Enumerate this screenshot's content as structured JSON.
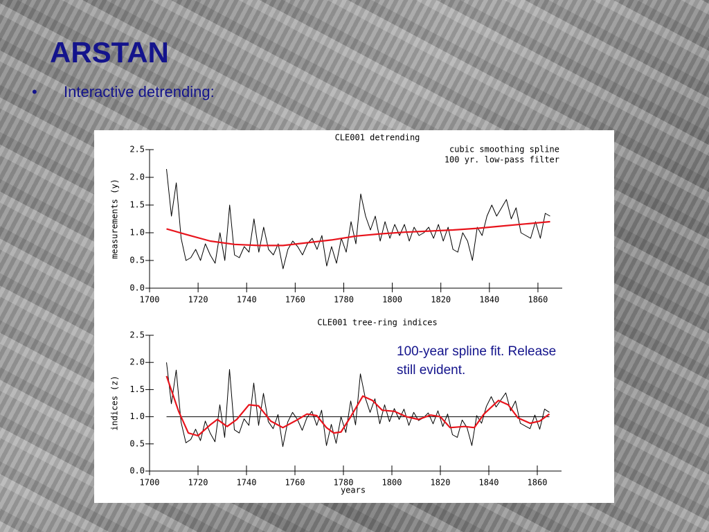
{
  "slide": {
    "title": "ARSTAN",
    "bullet": "•",
    "text": "Interactive detrending:",
    "note": [
      "100-year spline fit. Release",
      "still evident."
    ]
  },
  "chart_data": [
    {
      "type": "line",
      "title": "CLE001 detrending",
      "annotations": [
        "cubic smoothing spline",
        "100 yr. low-pass filter"
      ],
      "ylabel": "measurements (y)",
      "xlim": [
        1700,
        1870
      ],
      "xticks": [
        1700,
        1720,
        1740,
        1760,
        1780,
        1800,
        1820,
        1840,
        1860
      ],
      "ylim": [
        0,
        2.5
      ],
      "yticks": [
        {
          "value": 0,
          "label": "0.0"
        },
        0.5,
        {
          "value": 1,
          "label": "1.0"
        },
        1.5,
        {
          "value": 2,
          "label": "2.0"
        },
        2.5
      ],
      "series": [
        {
          "color": "#000000",
          "x": [
            1707,
            1709,
            1711,
            1713,
            1715,
            1717,
            1719,
            1721,
            1723,
            1725,
            1727,
            1729,
            1731,
            1733,
            1735,
            1737,
            1739,
            1741,
            1743,
            1745,
            1747,
            1749,
            1751,
            1753,
            1755,
            1757,
            1759,
            1761,
            1763,
            1765,
            1767,
            1769,
            1771,
            1773,
            1775,
            1777,
            1779,
            1781,
            1783,
            1785,
            1787,
            1789,
            1791,
            1793,
            1795,
            1797,
            1799,
            1801,
            1803,
            1805,
            1807,
            1809,
            1811,
            1813,
            1815,
            1817,
            1819,
            1821,
            1823,
            1825,
            1827,
            1829,
            1831,
            1833,
            1835,
            1837,
            1839,
            1841,
            1843,
            1845,
            1847,
            1849,
            1851,
            1853,
            1855,
            1857,
            1859,
            1861,
            1863,
            1865
          ],
          "values": [
            2.15,
            1.3,
            1.9,
            0.9,
            0.5,
            0.55,
            0.7,
            0.5,
            0.8,
            0.6,
            0.45,
            1.0,
            0.5,
            1.5,
            0.6,
            0.55,
            0.75,
            0.65,
            1.25,
            0.65,
            1.1,
            0.7,
            0.6,
            0.8,
            0.35,
            0.7,
            0.85,
            0.75,
            0.6,
            0.8,
            0.9,
            0.7,
            0.95,
            0.4,
            0.75,
            0.45,
            0.9,
            0.65,
            1.2,
            0.8,
            1.7,
            1.3,
            1.05,
            1.3,
            0.85,
            1.2,
            0.9,
            1.15,
            0.95,
            1.15,
            0.85,
            1.1,
            0.95,
            1.0,
            1.1,
            0.9,
            1.15,
            0.85,
            1.1,
            0.7,
            0.65,
            1.0,
            0.85,
            0.5,
            1.1,
            0.95,
            1.3,
            1.5,
            1.3,
            1.45,
            1.6,
            1.25,
            1.45,
            1.0,
            0.95,
            0.9,
            1.2,
            0.9,
            1.35,
            1.3
          ]
        },
        {
          "color": "#e8141c",
          "x": [
            1707,
            1715,
            1725,
            1735,
            1745,
            1755,
            1765,
            1775,
            1785,
            1795,
            1805,
            1815,
            1825,
            1835,
            1845,
            1855,
            1865
          ],
          "values": [
            1.07,
            0.97,
            0.85,
            0.79,
            0.77,
            0.77,
            0.82,
            0.87,
            0.94,
            0.98,
            1.01,
            1.03,
            1.05,
            1.08,
            1.12,
            1.16,
            1.2
          ]
        }
      ]
    },
    {
      "type": "line",
      "title": "CLE001 tree-ring indices",
      "ylabel": "indices (z)",
      "xlabel": "years",
      "hline": 1,
      "xlim": [
        1700,
        1870
      ],
      "xticks": [
        1700,
        1720,
        1740,
        1760,
        1780,
        1800,
        1820,
        1840,
        1860
      ],
      "ylim": [
        0,
        2.5
      ],
      "yticks": [
        {
          "value": 0,
          "label": "0.0"
        },
        0.5,
        {
          "value": 1,
          "label": "1.0"
        },
        1.5,
        {
          "value": 2,
          "label": "2.0"
        },
        2.5
      ],
      "series": [
        {
          "color": "#000000",
          "x": [
            1707,
            1709,
            1711,
            1713,
            1715,
            1717,
            1719,
            1721,
            1723,
            1725,
            1727,
            1729,
            1731,
            1733,
            1735,
            1737,
            1739,
            1741,
            1743,
            1745,
            1747,
            1749,
            1751,
            1753,
            1755,
            1757,
            1759,
            1761,
            1763,
            1765,
            1767,
            1769,
            1771,
            1773,
            1775,
            1777,
            1779,
            1781,
            1783,
            1785,
            1787,
            1789,
            1791,
            1793,
            1795,
            1797,
            1799,
            1801,
            1803,
            1805,
            1807,
            1809,
            1811,
            1813,
            1815,
            1817,
            1819,
            1821,
            1823,
            1825,
            1827,
            1829,
            1831,
            1833,
            1835,
            1837,
            1839,
            1841,
            1843,
            1845,
            1847,
            1849,
            1851,
            1853,
            1855,
            1857,
            1859,
            1861,
            1863,
            1865
          ],
          "values": [
            2.0,
            1.24,
            1.86,
            0.9,
            0.52,
            0.58,
            0.77,
            0.56,
            0.92,
            0.7,
            0.54,
            1.22,
            0.62,
            1.87,
            0.76,
            0.7,
            0.96,
            0.84,
            1.62,
            0.84,
            1.43,
            0.91,
            0.78,
            1.04,
            0.45,
            0.9,
            1.08,
            0.95,
            0.75,
            0.99,
            1.1,
            0.84,
            1.12,
            0.47,
            0.86,
            0.51,
            1.0,
            0.71,
            1.29,
            0.85,
            1.79,
            1.35,
            1.08,
            1.33,
            0.87,
            1.22,
            0.91,
            1.15,
            0.95,
            1.14,
            0.84,
            1.08,
            0.93,
            0.98,
            1.07,
            0.87,
            1.11,
            0.82,
            1.05,
            0.67,
            0.62,
            0.94,
            0.8,
            0.47,
            1.02,
            0.88,
            1.19,
            1.37,
            1.18,
            1.31,
            1.44,
            1.11,
            1.29,
            0.88,
            0.83,
            0.78,
            1.03,
            0.77,
            1.14,
            1.08
          ]
        },
        {
          "color": "#e8141c",
          "x": [
            1707,
            1712,
            1716,
            1720,
            1725,
            1728,
            1732,
            1736,
            1741,
            1745,
            1750,
            1755,
            1760,
            1765,
            1769,
            1773,
            1776,
            1779,
            1783,
            1788,
            1792,
            1796,
            1801,
            1806,
            1811,
            1816,
            1820,
            1824,
            1830,
            1834,
            1838,
            1844,
            1848,
            1852,
            1857,
            1861,
            1865
          ],
          "values": [
            1.75,
            1.1,
            0.7,
            0.65,
            0.85,
            0.95,
            0.82,
            0.95,
            1.22,
            1.2,
            0.92,
            0.8,
            0.92,
            1.05,
            1.02,
            0.8,
            0.7,
            0.72,
            1.0,
            1.38,
            1.3,
            1.12,
            1.1,
            1.0,
            0.95,
            1.03,
            1.0,
            0.8,
            0.82,
            0.8,
            1.05,
            1.3,
            1.22,
            0.98,
            0.88,
            0.92,
            1.05
          ]
        }
      ]
    }
  ]
}
